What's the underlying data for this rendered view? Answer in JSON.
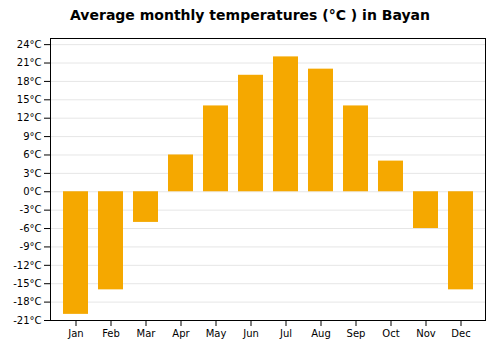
{
  "chart_data": {
    "type": "bar",
    "title": "Average monthly temperatures (°C ) in Bayan",
    "categories": [
      "Jan",
      "Feb",
      "Mar",
      "Apr",
      "May",
      "Jun",
      "Jul",
      "Aug",
      "Sep",
      "Oct",
      "Nov",
      "Dec"
    ],
    "values": [
      -20,
      -16,
      -5,
      6,
      14,
      19,
      22,
      20,
      14,
      5,
      -6,
      -16
    ],
    "color": "#F5A800",
    "ylim": [
      -21,
      25
    ],
    "yticks": [
      {
        "value": -21,
        "label": "-21°C"
      },
      {
        "value": -18,
        "label": "-18°C"
      },
      {
        "value": -15,
        "label": "-15°C"
      },
      {
        "value": -12,
        "label": "-12°C"
      },
      {
        "value": -9,
        "label": "-9°C"
      },
      {
        "value": -6,
        "label": "-6°C"
      },
      {
        "value": -3,
        "label": "-3°C"
      },
      {
        "value": 0,
        "label": "0°C"
      },
      {
        "value": 3,
        "label": "3°C"
      },
      {
        "value": 6,
        "label": "6°C"
      },
      {
        "value": 9,
        "label": "9°C"
      },
      {
        "value": 12,
        "label": "12°C"
      },
      {
        "value": 15,
        "label": "15°C"
      },
      {
        "value": 18,
        "label": "18°C"
      },
      {
        "value": 21,
        "label": "21°C"
      },
      {
        "value": 24,
        "label": "24°C"
      }
    ],
    "grid": true
  }
}
